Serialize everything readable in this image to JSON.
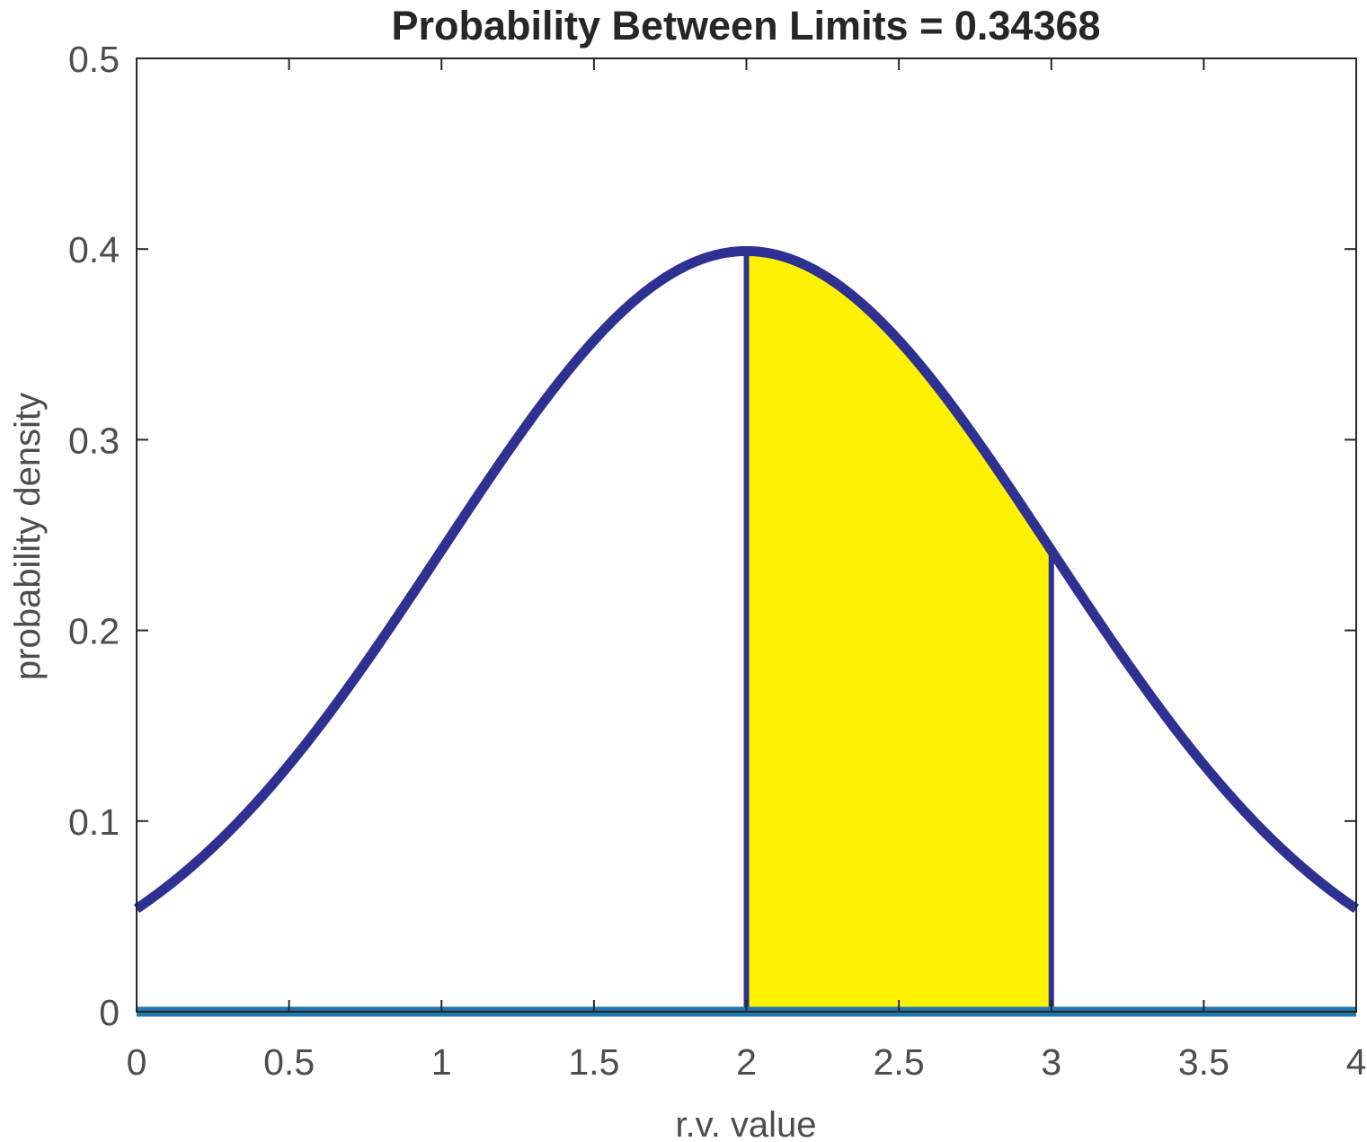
{
  "chart_data": {
    "type": "area",
    "title": "Probability Between Limits = 0.34368",
    "xlabel": "r.v. value",
    "ylabel": "probability density",
    "xlim": [
      0,
      4
    ],
    "ylim": [
      0,
      0.5
    ],
    "x_ticks": [
      0,
      0.5,
      1,
      1.5,
      2,
      2.5,
      3,
      3.5,
      4
    ],
    "x_tick_labels": [
      "0",
      "0.5",
      "1",
      "1.5",
      "2",
      "2.5",
      "3",
      "3.5",
      "4"
    ],
    "y_ticks": [
      0,
      0.1,
      0.2,
      0.3,
      0.4,
      0.5
    ],
    "y_tick_labels": [
      "0",
      "0.1",
      "0.2",
      "0.3",
      "0.4",
      "0.5"
    ],
    "grid": false,
    "density_curve": {
      "distribution": "normal",
      "mean": 2,
      "std": 1,
      "x_range": [
        0,
        4
      ],
      "color": "#2e3192",
      "sample_points": [
        {
          "x": 0,
          "y": 0.054
        },
        {
          "x": 0.5,
          "y": 0.13
        },
        {
          "x": 1,
          "y": 0.242
        },
        {
          "x": 1.5,
          "y": 0.352
        },
        {
          "x": 2,
          "y": 0.399
        },
        {
          "x": 2.5,
          "y": 0.352
        },
        {
          "x": 3,
          "y": 0.242
        },
        {
          "x": 3.5,
          "y": 0.13
        },
        {
          "x": 4,
          "y": 0.054
        }
      ]
    },
    "shaded_region": {
      "x_from": 2,
      "x_to": 3,
      "probability": 0.34368,
      "fill_color": "#fff200",
      "edge_color": "#1a1a1a"
    },
    "baseline": {
      "y": 0,
      "color": "#2176ae"
    },
    "axis_color": "#262626"
  }
}
